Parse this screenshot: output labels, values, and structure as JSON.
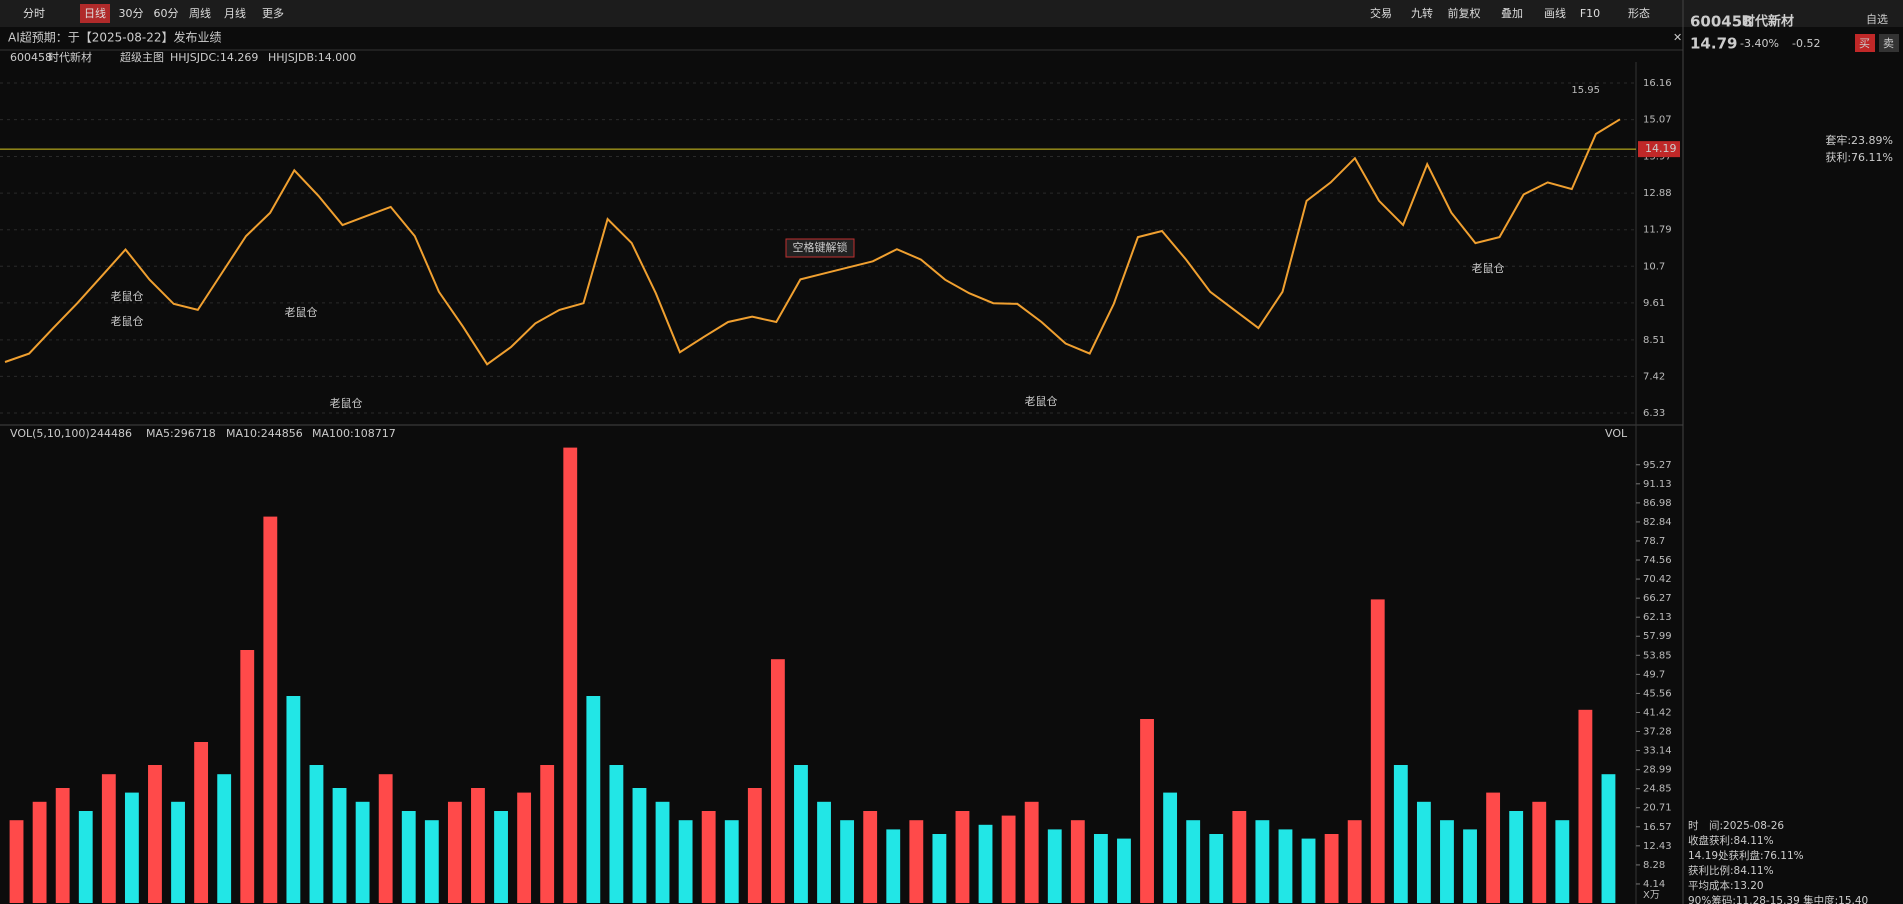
{
  "toolbar": {
    "periods": [
      "分时",
      "日线",
      "30分",
      "60分",
      "周线",
      "月线",
      "更多"
    ],
    "tools": [
      "交易",
      "九转",
      "前复权",
      "叠加",
      "画线",
      "F10",
      "形态"
    ]
  },
  "notice": "AI超预期：于【2025-08-22】发布业绩",
  "header": {
    "code": "600458",
    "name": "时代新材",
    "indicators": [
      "超级主图",
      "HHJSJDC:14.269",
      "HHJSJDB:14.000"
    ]
  },
  "chart_data": [
    {
      "type": "line",
      "color": "#f0a030",
      "values": [
        7.85,
        8.1,
        8.86,
        9.6,
        10.4,
        11.2,
        10.3,
        9.58,
        9.4,
        10.5,
        11.6,
        12.29,
        13.56,
        12.8,
        11.93,
        12.2,
        12.47,
        11.6,
        9.94,
        8.9,
        7.78,
        8.3,
        9.0,
        9.4,
        9.6,
        12.11,
        11.39,
        9.9,
        8.14,
        8.6,
        9.04,
        9.2,
        9.04,
        10.31,
        10.49,
        10.67,
        10.85,
        11.21,
        10.9,
        10.3,
        9.9,
        9.6,
        9.58,
        9.04,
        8.4,
        8.1,
        9.58,
        11.57,
        11.75,
        10.9,
        9.94,
        9.4,
        8.86,
        9.94,
        12.65,
        13.2,
        13.92,
        12.65,
        11.93,
        13.74,
        12.3,
        11.39,
        11.57,
        12.84,
        13.2,
        13.0,
        14.64,
        15.08
      ],
      "ylim": [
        6.33,
        16.16
      ],
      "yticks": [
        16.16,
        15.07,
        13.97,
        12.88,
        11.79,
        10.7,
        9.61,
        8.51,
        7.42,
        6.33
      ],
      "reference_line": 14.19,
      "max_label": 15.95,
      "annotations": [
        "老鼠仓",
        "老鼠仓",
        "老鼠仓",
        "老鼠仓",
        "老鼠仓",
        "老鼠仓",
        "空格键解锁"
      ]
    },
    {
      "type": "bar",
      "title": "VOL(5,10,100)",
      "indicator_name": "VOL",
      "legend": [
        "244486",
        "MA5:296718",
        "MA10:244856",
        "MA100:108717"
      ],
      "unit": "X万",
      "colors": [
        "#ff4a4a",
        "#22e6e6"
      ],
      "values": [
        18,
        22,
        25,
        20,
        28,
        24,
        30,
        22,
        35,
        28,
        55,
        84,
        45,
        30,
        25,
        22,
        28,
        20,
        18,
        22,
        25,
        20,
        24,
        30,
        99,
        45,
        30,
        25,
        22,
        18,
        20,
        18,
        25,
        53,
        30,
        22,
        18,
        20,
        16,
        18,
        15,
        20,
        17,
        19,
        22,
        16,
        18,
        15,
        14,
        40,
        24,
        18,
        15,
        20,
        18,
        16,
        14,
        15,
        18,
        66,
        30,
        22,
        18,
        16,
        24,
        20,
        22,
        18,
        42,
        28
      ],
      "ylim": [
        0,
        100
      ],
      "yticks": [
        95.27,
        91.13,
        86.98,
        82.84,
        78.7,
        74.56,
        70.42,
        66.27,
        62.13,
        57.99,
        53.85,
        49.7,
        45.56,
        41.42,
        37.28,
        33.14,
        28.99,
        24.85,
        20.71,
        16.57,
        12.43,
        8.28,
        4.14
      ]
    }
  ],
  "quote": {
    "code": "600458",
    "name": "时代新材",
    "price": "14.79",
    "change_pct": "-3.40%",
    "change": "-0.52",
    "buy": "买",
    "sell": "卖",
    "watch": "自选"
  },
  "chips": {
    "trapped": "套牢:23.89%",
    "profit": "获利:76.11%",
    "details": [
      "时　间:2025-08-26",
      "收盘获利:84.11%",
      "14.19处获利盘:76.11%",
      "获利比例:84.11%",
      "平均成本:13.20",
      "90%筹码:11.28-15.39 集中度:15.40"
    ]
  }
}
